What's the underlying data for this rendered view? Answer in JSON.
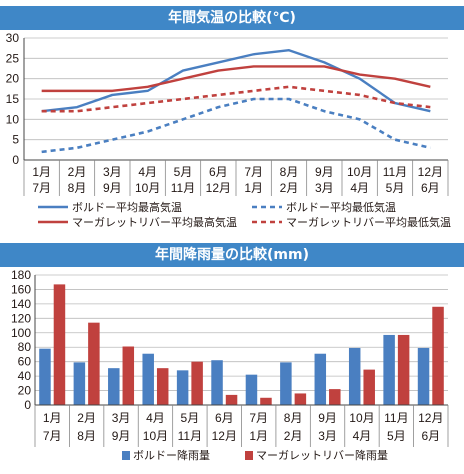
{
  "chart_data": [
    {
      "type": "line",
      "title": "年間気温の比較(℃)",
      "ylim": [
        0,
        30
      ],
      "yticks": [
        0,
        5,
        10,
        15,
        20,
        25,
        30
      ],
      "categories": [
        {
          "top": "1月",
          "bottom": "7月"
        },
        {
          "top": "2月",
          "bottom": "8月"
        },
        {
          "top": "3月",
          "bottom": "9月"
        },
        {
          "top": "4月",
          "bottom": "10月"
        },
        {
          "top": "5月",
          "bottom": "11月"
        },
        {
          "top": "6月",
          "bottom": "12月"
        },
        {
          "top": "7月",
          "bottom": "1月"
        },
        {
          "top": "8月",
          "bottom": "2月"
        },
        {
          "top": "9月",
          "bottom": "3月"
        },
        {
          "top": "10月",
          "bottom": "4月"
        },
        {
          "top": "11月",
          "bottom": "5月"
        },
        {
          "top": "12月",
          "bottom": "6月"
        }
      ],
      "grid": "horizontal",
      "legend": "bottom",
      "series": [
        {
          "name": "ボルドー平均最高気温",
          "color": "#4a7fc1",
          "style": "solid",
          "values": [
            12,
            13,
            16,
            17,
            22,
            24,
            26,
            27,
            24,
            20,
            14,
            12
          ]
        },
        {
          "name": "ボルドー平均最低気温",
          "color": "#4a7fc1",
          "style": "dashed",
          "values": [
            2,
            3,
            5,
            7,
            10,
            13,
            15,
            15,
            12,
            10,
            5,
            3
          ]
        },
        {
          "name": "マーガレットリバー平均最高気温",
          "color": "#c0413e",
          "style": "solid",
          "values": [
            17,
            17,
            17,
            18,
            20,
            22,
            23,
            23,
            23,
            21,
            20,
            18
          ]
        },
        {
          "name": "マーガレットリバー平均最低気温",
          "color": "#c0413e",
          "style": "dashed",
          "values": [
            12,
            12,
            13,
            14,
            15,
            16,
            17,
            18,
            17,
            16,
            14,
            13
          ]
        }
      ]
    },
    {
      "type": "bar",
      "title": "年間降雨量の比較(mm)",
      "ylim": [
        0,
        180
      ],
      "yticks": [
        0,
        20,
        40,
        60,
        80,
        100,
        120,
        140,
        160,
        180
      ],
      "grid": "horizontal",
      "legend": "bottom",
      "series": [
        {
          "name": "ボルドー降雨量",
          "color": "#4a7fc1",
          "values": [
            78,
            59,
            51,
            71,
            48,
            62,
            42,
            59,
            71,
            79,
            97,
            79
          ]
        },
        {
          "name": "マーガレットリバー降雨量",
          "color": "#c0413e",
          "values": [
            167,
            114,
            81,
            51,
            60,
            14,
            10,
            16,
            22,
            49,
            97,
            136
          ]
        }
      ]
    }
  ]
}
